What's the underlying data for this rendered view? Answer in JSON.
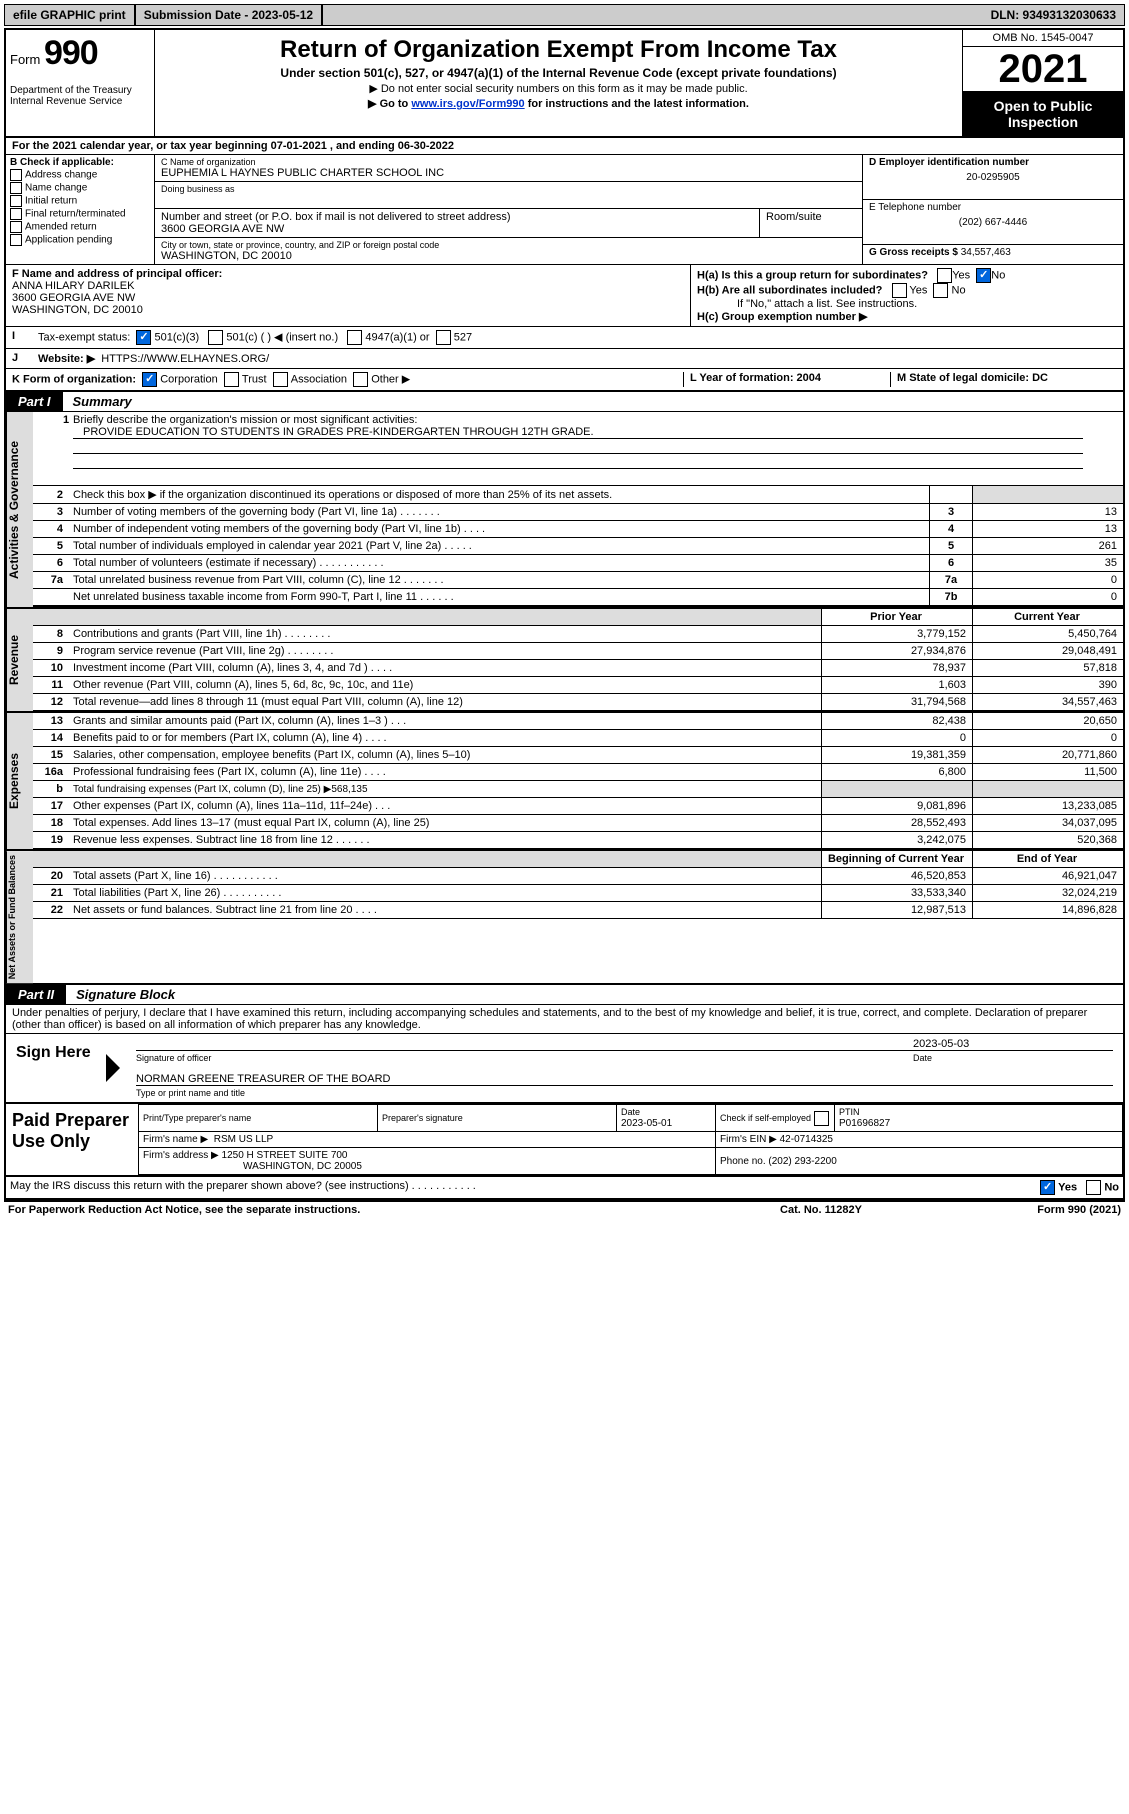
{
  "topbar": {
    "efile": "efile GRAPHIC print",
    "submission": "Submission Date - 2023-05-12",
    "dln": "DLN: 93493132030633"
  },
  "header": {
    "form_prefix": "Form",
    "form_number": "990",
    "dept": "Department of the Treasury\nInternal Revenue Service",
    "title": "Return of Organization Exempt From Income Tax",
    "sub1": "Under section 501(c), 527, or 4947(a)(1) of the Internal Revenue Code (except private foundations)",
    "sub2": "▶ Do not enter social security numbers on this form as it may be made public.",
    "sub3_pre": "▶ Go to ",
    "sub3_link": "www.irs.gov/Form990",
    "sub3_post": " for instructions and the latest information.",
    "omb": "OMB No. 1545-0047",
    "year": "2021",
    "open": "Open to Public Inspection"
  },
  "periodA": {
    "prefix": "A",
    "text": "For the 2021 calendar year, or tax year beginning 07-01-2021  , and ending 06-30-2022"
  },
  "boxB": {
    "title": "B Check if applicable:",
    "opts": [
      "Address change",
      "Name change",
      "Initial return",
      "Final return/terminated",
      "Amended return",
      "Application pending"
    ]
  },
  "boxC": {
    "name_label": "C Name of organization",
    "name": "EUPHEMIA L HAYNES PUBLIC CHARTER SCHOOL INC",
    "dba_label": "Doing business as",
    "street_label": "Number and street (or P.O. box if mail is not delivered to street address)",
    "room_label": "Room/suite",
    "street": "3600 GEORGIA AVE NW",
    "city_label": "City or town, state or province, country, and ZIP or foreign postal code",
    "city": "WASHINGTON, DC  20010"
  },
  "boxD": {
    "label": "D Employer identification number",
    "val": "20-0295905"
  },
  "boxE": {
    "label": "E Telephone number",
    "val": "(202) 667-4446"
  },
  "boxG": {
    "label": "G Gross receipts $",
    "val": "34,557,463"
  },
  "boxF": {
    "label": "F Name and address of principal officer:",
    "name": "ANNA HILARY DARILEK",
    "addr1": "3600 GEORGIA AVE NW",
    "addr2": "WASHINGTON, DC  20010"
  },
  "boxH": {
    "ha": "H(a)  Is this a group return for subordinates?",
    "hb": "H(b)  Are all subordinates included?",
    "hb_note": "If \"No,\" attach a list. See instructions.",
    "hc": "H(c)  Group exemption number ▶"
  },
  "rowI": {
    "label": "Tax-exempt status:",
    "o1": "501(c)(3)",
    "o2": "501(c) (  ) ◀ (insert no.)",
    "o3": "4947(a)(1) or",
    "o4": "527"
  },
  "rowJ": {
    "label": "Website: ▶",
    "val": "HTTPS://WWW.ELHAYNES.ORG/"
  },
  "rowK": {
    "label": "K Form of organization:",
    "corp": "Corporation",
    "trust": "Trust",
    "assoc": "Association",
    "other": "Other ▶",
    "L": "L Year of formation: 2004",
    "M": "M State of legal domicile: DC"
  },
  "part1": {
    "label": "Part I",
    "title": "Summary",
    "q1": "Briefly describe the organization's mission or most significant activities:",
    "mission": "PROVIDE EDUCATION TO STUDENTS IN GRADES PRE-KINDERGARTEN THROUGH 12TH GRADE.",
    "q2": "Check this box ▶  if the organization discontinued its operations or disposed of more than 25% of its net assets.",
    "sidelabels": {
      "a": "Activities & Governance",
      "r": "Revenue",
      "e": "Expenses",
      "n": "Net Assets or Fund Balances"
    },
    "col_prior": "Prior Year",
    "col_current": "Current Year",
    "col_begin": "Beginning of Current Year",
    "col_end": "End of Year",
    "lines_gov": [
      {
        "n": "3",
        "d": "Number of voting members of the governing body (Part VI, line 1a)  .    .    .    .    .    .    .",
        "bn": "3",
        "v": "13"
      },
      {
        "n": "4",
        "d": "Number of independent voting members of the governing body (Part VI, line 1b)  .    .    .    .",
        "bn": "4",
        "v": "13"
      },
      {
        "n": "5",
        "d": "Total number of individuals employed in calendar year 2021 (Part V, line 2a)  .    .    .    .    .",
        "bn": "5",
        "v": "261"
      },
      {
        "n": "6",
        "d": "Total number of volunteers (estimate if necessary)  .    .    .    .    .    .    .    .    .    .    .",
        "bn": "6",
        "v": "35"
      },
      {
        "n": "7a",
        "d": "Total unrelated business revenue from Part VIII, column (C), line 12  .    .    .    .    .    .    .",
        "bn": "7a",
        "v": "0"
      },
      {
        "n": "",
        "d": "Net unrelated business taxable income from Form 990-T, Part I, line 11  .    .    .    .    .    .",
        "bn": "7b",
        "v": "0"
      }
    ],
    "lines_rev": [
      {
        "n": "8",
        "d": "Contributions and grants (Part VIII, line 1h)   .    .    .    .    .    .    .    .",
        "v1": "3,779,152",
        "v2": "5,450,764"
      },
      {
        "n": "9",
        "d": "Program service revenue (Part VIII, line 2g)   .    .    .    .    .    .    .    .",
        "v1": "27,934,876",
        "v2": "29,048,491"
      },
      {
        "n": "10",
        "d": "Investment income (Part VIII, column (A), lines 3, 4, and 7d )  .    .    .    .",
        "v1": "78,937",
        "v2": "57,818"
      },
      {
        "n": "11",
        "d": "Other revenue (Part VIII, column (A), lines 5, 6d, 8c, 9c, 10c, and 11e)",
        "v1": "1,603",
        "v2": "390"
      },
      {
        "n": "12",
        "d": "Total revenue—add lines 8 through 11 (must equal Part VIII, column (A), line 12)",
        "v1": "31,794,568",
        "v2": "34,557,463"
      }
    ],
    "lines_exp": [
      {
        "n": "13",
        "d": "Grants and similar amounts paid (Part IX, column (A), lines 1–3 )  .    .    .",
        "v1": "82,438",
        "v2": "20,650"
      },
      {
        "n": "14",
        "d": "Benefits paid to or for members (Part IX, column (A), line 4)  .    .    .    .",
        "v1": "0",
        "v2": "0"
      },
      {
        "n": "15",
        "d": "Salaries, other compensation, employee benefits (Part IX, column (A), lines 5–10)",
        "v1": "19,381,359",
        "v2": "20,771,860"
      },
      {
        "n": "16a",
        "d": "Professional fundraising fees (Part IX, column (A), line 11e)  .    .    .    .",
        "v1": "6,800",
        "v2": "11,500"
      },
      {
        "n": "b",
        "d": "Total fundraising expenses (Part IX, column (D), line 25) ▶568,135",
        "shade": true
      },
      {
        "n": "17",
        "d": "Other expenses (Part IX, column (A), lines 11a–11d, 11f–24e)  .    .    .",
        "v1": "9,081,896",
        "v2": "13,233,085"
      },
      {
        "n": "18",
        "d": "Total expenses. Add lines 13–17 (must equal Part IX, column (A), line 25)",
        "v1": "28,552,493",
        "v2": "34,037,095"
      },
      {
        "n": "19",
        "d": "Revenue less expenses. Subtract line 18 from line 12  .    .    .    .    .    .",
        "v1": "3,242,075",
        "v2": "520,368"
      }
    ],
    "lines_net": [
      {
        "n": "20",
        "d": "Total assets (Part X, line 16)  .    .    .    .    .    .    .    .    .    .    .",
        "v1": "46,520,853",
        "v2": "46,921,047"
      },
      {
        "n": "21",
        "d": "Total liabilities (Part X, line 26)  .    .    .    .    .    .    .    .    .    .",
        "v1": "33,533,340",
        "v2": "32,024,219"
      },
      {
        "n": "22",
        "d": "Net assets or fund balances. Subtract line 21 from line 20  .    .    .    .",
        "v1": "12,987,513",
        "v2": "14,896,828"
      }
    ]
  },
  "part2": {
    "label": "Part II",
    "title": "Signature Block",
    "decl": "Under penalties of perjury, I declare that I have examined this return, including accompanying schedules and statements, and to the best of my knowledge and belief, it is true, correct, and complete. Declaration of preparer (other than officer) is based on all information of which preparer has any knowledge."
  },
  "sign": {
    "here": "Sign Here",
    "sig_officer": "Signature of officer",
    "sig_date": "2023-05-03",
    "date_label": "Date",
    "name": "NORMAN GREENE  TREASURER OF THE BOARD",
    "name_label": "Type or print name and title"
  },
  "paid": {
    "title": "Paid Preparer Use Only",
    "h_name": "Print/Type preparer's name",
    "h_sig": "Preparer's signature",
    "h_date": "Date",
    "date": "2023-05-01",
    "h_self": "Check  if self-employed",
    "h_ptin": "PTIN",
    "ptin": "P01696827",
    "firm_l": "Firm's name   ▶",
    "firm": "RSM US LLP",
    "ein_l": "Firm's EIN ▶",
    "ein": "42-0714325",
    "addr_l": "Firm's address ▶",
    "addr": "1250 H STREET SUITE 700",
    "addr2": "WASHINGTON, DC  20005",
    "phone_l": "Phone no.",
    "phone": "(202) 293-2200"
  },
  "bottom": {
    "q": "May the IRS discuss this return with the preparer shown above? (see instructions)   .    .    .    .    .    .    .    .    .    .    .",
    "yes": "Yes",
    "no": "No"
  },
  "footer": {
    "l": "For Paperwork Reduction Act Notice, see the separate instructions.",
    "m": "Cat. No. 11282Y",
    "r": "Form 990 (2021)"
  }
}
